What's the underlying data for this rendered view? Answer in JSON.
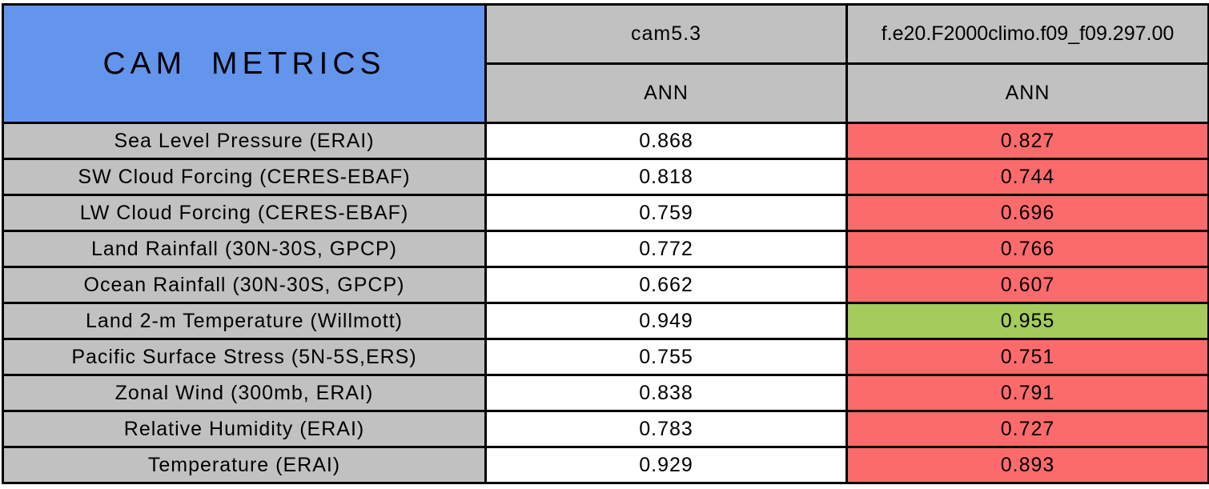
{
  "table": {
    "title": "CAM METRICS",
    "columns": [
      {
        "label": "cam5.3",
        "sublabel": "ANN"
      },
      {
        "label": "f.e20.F2000climo.f09_f09.297.00",
        "sublabel": "ANN"
      }
    ],
    "rows": [
      {
        "metric": "Sea Level Pressure (ERAI)",
        "control": "0.868",
        "test": "0.827",
        "status": "worse"
      },
      {
        "metric": "SW Cloud Forcing (CERES-EBAF)",
        "control": "0.818",
        "test": "0.744",
        "status": "worse"
      },
      {
        "metric": "LW Cloud Forcing (CERES-EBAF)",
        "control": "0.759",
        "test": "0.696",
        "status": "worse"
      },
      {
        "metric": "Land Rainfall (30N-30S, GPCP)",
        "control": "0.772",
        "test": "0.766",
        "status": "worse"
      },
      {
        "metric": "Ocean Rainfall (30N-30S, GPCP)",
        "control": "0.662",
        "test": "0.607",
        "status": "worse"
      },
      {
        "metric": "Land 2-m Temperature (Willmott)",
        "control": "0.949",
        "test": "0.955",
        "status": "better"
      },
      {
        "metric": "Pacific Surface Stress (5N-5S,ERS)",
        "control": "0.755",
        "test": "0.751",
        "status": "worse"
      },
      {
        "metric": "Zonal Wind (300mb, ERAI)",
        "control": "0.838",
        "test": "0.791",
        "status": "worse"
      },
      {
        "metric": "Relative Humidity (ERAI)",
        "control": "0.783",
        "test": "0.727",
        "status": "worse"
      },
      {
        "metric": "Temperature (ERAI)",
        "control": "0.929",
        "test": "0.893",
        "status": "worse"
      }
    ]
  },
  "colors": {
    "blue": "#6495ED",
    "gray": "#C1C1C1",
    "red": "#FC6B6B",
    "green": "#A3CC5C",
    "border": "#000000"
  },
  "chart_data": {
    "type": "table",
    "title": "CAM METRICS",
    "categories": [
      "Sea Level Pressure (ERAI)",
      "SW Cloud Forcing (CERES-EBAF)",
      "LW Cloud Forcing (CERES-EBAF)",
      "Land Rainfall (30N-30S, GPCP)",
      "Ocean Rainfall (30N-30S, GPCP)",
      "Land 2-m Temperature (Willmott)",
      "Pacific Surface Stress (5N-5S,ERS)",
      "Zonal Wind (300mb, ERAI)",
      "Relative Humidity (ERAI)",
      "Temperature (ERAI)"
    ],
    "series": [
      {
        "name": "cam5.3 ANN",
        "values": [
          0.868,
          0.818,
          0.759,
          0.772,
          0.662,
          0.949,
          0.755,
          0.838,
          0.783,
          0.929
        ]
      },
      {
        "name": "f.e20.F2000climo.f09_f09.297.00 ANN",
        "values": [
          0.827,
          0.744,
          0.696,
          0.766,
          0.607,
          0.955,
          0.751,
          0.791,
          0.727,
          0.893
        ]
      }
    ]
  }
}
